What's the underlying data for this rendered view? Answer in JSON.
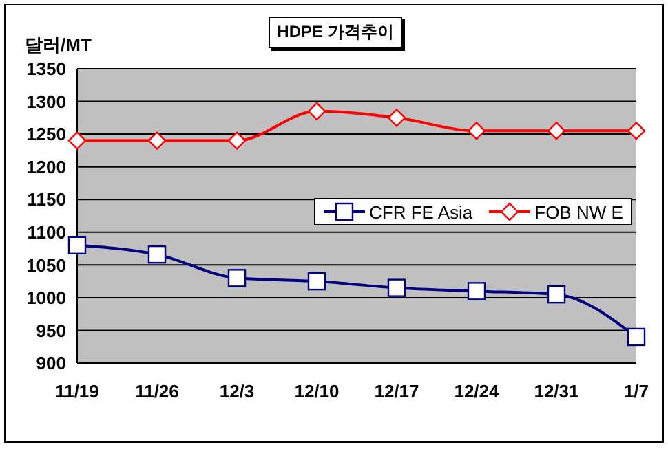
{
  "chart_data": {
    "type": "line",
    "title": "HDPE 가격추이",
    "ylabel": "달러/MT",
    "categories": [
      "11/19",
      "11/26",
      "12/3",
      "12/10",
      "12/17",
      "12/24",
      "12/31",
      "1/7"
    ],
    "series": [
      {
        "name": "CFR FE Asia",
        "color": "#000080",
        "marker": "square",
        "values": [
          1080,
          1066,
          1030,
          1025,
          1015,
          1010,
          1005,
          940
        ]
      },
      {
        "name": "FOB NW E",
        "color": "#ff0000",
        "marker": "diamond",
        "values": [
          1240,
          1240,
          1240,
          1285,
          1275,
          1255,
          1255,
          1255
        ]
      }
    ],
    "ylim": [
      900,
      1350
    ],
    "yticks": [
      900,
      950,
      1000,
      1050,
      1100,
      1150,
      1200,
      1250,
      1300,
      1350
    ],
    "grid": "y",
    "legend": "right"
  }
}
